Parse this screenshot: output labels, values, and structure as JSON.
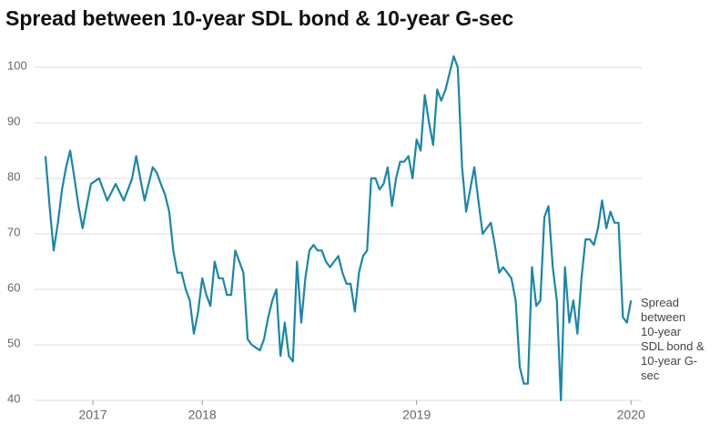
{
  "chart_data": {
    "type": "line",
    "title": "Spread between 10-year SDL bond & 10-year G-sec",
    "x": [
      2017.269,
      2017.288,
      2017.307,
      2017.327,
      2017.346,
      2017.365,
      2017.384,
      2017.404,
      2017.423,
      2017.442,
      2017.461,
      2017.481,
      2017.5,
      2017.519,
      2017.538,
      2017.557,
      2017.577,
      2017.596,
      2017.615,
      2017.634,
      2017.654,
      2017.673,
      2017.692,
      2017.711,
      2017.731,
      2017.75,
      2017.769,
      2017.788,
      2017.807,
      2017.827,
      2017.846,
      2017.865,
      2017.884,
      2017.904,
      2017.923,
      2017.942,
      2017.961,
      2017.981,
      2018.0,
      2018.019,
      2018.038,
      2018.058,
      2018.077,
      2018.096,
      2018.115,
      2018.135,
      2018.154,
      2018.173,
      2018.192,
      2018.212,
      2018.231,
      2018.25,
      2018.269,
      2018.288,
      2018.308,
      2018.327,
      2018.346,
      2018.365,
      2018.385,
      2018.404,
      2018.423,
      2018.442,
      2018.462,
      2018.481,
      2018.5,
      2018.519,
      2018.538,
      2018.558,
      2018.577,
      2018.596,
      2018.615,
      2018.635,
      2018.654,
      2018.673,
      2018.692,
      2018.712,
      2018.731,
      2018.75,
      2018.769,
      2018.788,
      2018.808,
      2018.827,
      2018.846,
      2018.865,
      2018.885,
      2018.904,
      2018.923,
      2018.942,
      2018.962,
      2018.981,
      2019.0,
      2019.019,
      2019.038,
      2019.058,
      2019.077,
      2019.096,
      2019.115,
      2019.135,
      2019.154,
      2019.173,
      2019.192,
      2019.212,
      2019.231,
      2019.25,
      2019.269,
      2019.288,
      2019.308,
      2019.327,
      2019.346,
      2019.365,
      2019.385,
      2019.404,
      2019.423,
      2019.442,
      2019.462,
      2019.481,
      2019.5,
      2019.519,
      2019.538,
      2019.558,
      2019.577,
      2019.596,
      2019.615,
      2019.635,
      2019.654,
      2019.673,
      2019.692,
      2019.712,
      2019.731,
      2019.75,
      2019.769,
      2019.788,
      2019.808,
      2019.827,
      2019.846,
      2019.865,
      2019.885,
      2019.904,
      2019.923,
      2019.942,
      2019.962,
      2019.981,
      2020.0
    ],
    "series": [
      {
        "name": "Spread between 10-year SDL bond & 10-year G-sec",
        "color": "#1b86aa",
        "values": [
          84,
          75,
          67,
          72,
          78,
          82,
          85,
          80,
          75,
          71,
          75,
          79,
          79.5,
          80,
          78,
          76,
          77.5,
          79,
          77.5,
          76,
          78,
          80,
          84,
          80,
          76,
          79,
          82,
          81,
          79,
          77,
          74,
          67,
          63,
          63,
          60,
          58,
          52,
          56,
          62,
          59,
          57,
          65,
          62,
          62,
          59,
          59,
          67,
          65,
          63,
          51,
          50,
          49.5,
          49,
          51,
          55,
          58,
          60,
          48,
          54,
          48,
          47,
          65,
          54,
          62,
          67,
          68,
          67,
          67,
          65,
          64,
          65,
          66,
          63,
          61,
          61,
          56,
          63,
          66,
          67,
          80,
          80,
          78,
          79,
          82,
          75,
          80,
          83,
          83,
          84,
          80,
          87,
          85,
          95,
          90,
          86,
          96,
          94,
          96,
          99,
          102,
          100,
          82,
          74,
          78,
          82,
          76,
          70,
          71,
          72,
          68,
          63,
          64,
          63,
          62,
          58,
          46,
          43,
          43,
          64,
          57,
          58,
          73,
          75,
          64,
          58,
          40,
          64,
          54,
          58,
          52,
          62,
          69,
          69,
          68,
          71,
          76,
          71,
          74,
          72,
          72,
          55,
          54,
          58
        ]
      }
    ],
    "xlim": [
      2017.269,
      2020.05
    ],
    "xticks": [
      {
        "value": 2017.49,
        "label": "2017"
      },
      2018,
      2019,
      2020
    ],
    "ylim": [
      40,
      100
    ],
    "yticks": [
      40,
      50,
      60,
      70,
      80,
      90,
      100
    ],
    "grid": true
  }
}
